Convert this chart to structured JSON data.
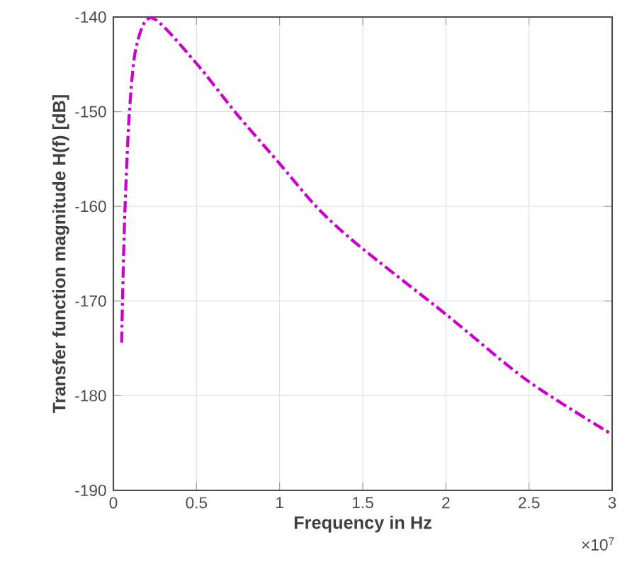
{
  "chart_data": {
    "type": "line",
    "xlabel": "Frequency in Hz",
    "ylabel": "Transfer function magnitude H(f) [dB]",
    "annotations": [
      "×10$^{7}$"
    ],
    "xlim": [
      0,
      3
    ],
    "xticks": [
      0,
      0.5,
      1,
      1.5,
      2,
      2.5,
      3
    ],
    "ylim": [
      -190,
      -140
    ],
    "yticks": [
      -190,
      -180,
      -170,
      -160,
      -150,
      -140
    ],
    "grid": true,
    "line_style": "dashed",
    "marker": "none",
    "series": [
      {
        "color": "#cc00cc",
        "x": [
          0.05,
          0.055,
          0.069,
          0.096,
          0.137,
          0.233,
          0.49,
          0.74,
          0.986,
          1.23,
          1.48,
          2.0,
          2.49,
          3.0
        ],
        "values": [
          -174.4,
          -170,
          -160.7,
          -150.2,
          -143.2,
          -140.1,
          -144.7,
          -150.2,
          -155.2,
          -160.2,
          -164.2,
          -171.4,
          -178.4,
          -184.1
        ]
      }
    ]
  }
}
